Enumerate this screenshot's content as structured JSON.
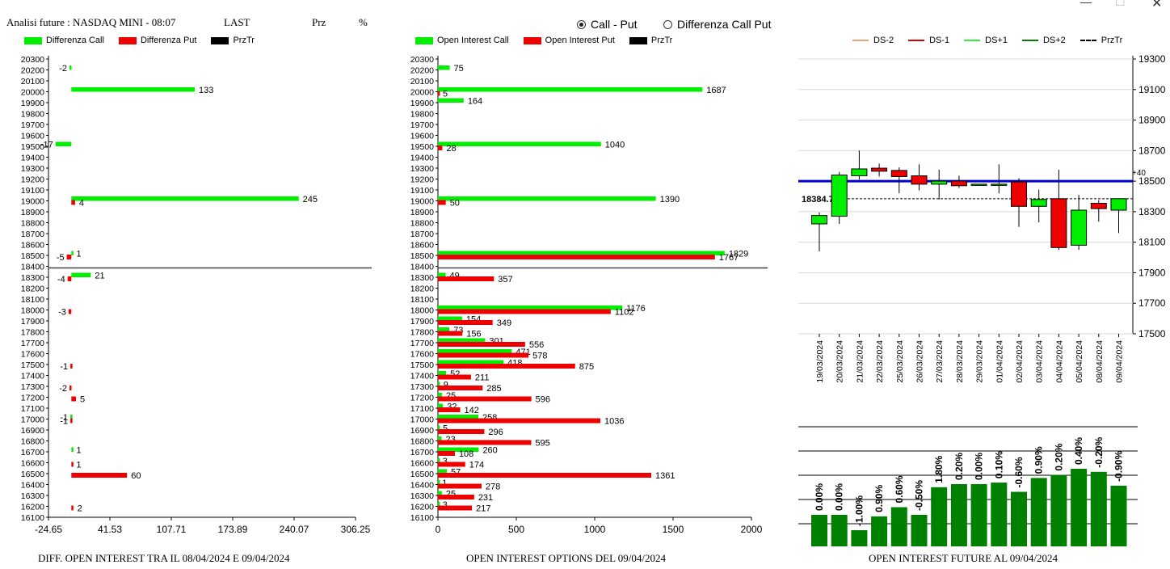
{
  "header": {
    "title": "Analisi future : NASDAQ MINI - 08:07",
    "last": "LAST",
    "prz": "Prz",
    "pct": "%"
  },
  "radio": {
    "call_put": "Call - Put",
    "diff": "Differenza Call Put",
    "selected": "call_put"
  },
  "colors": {
    "green": "#00ee00",
    "red": "#ee0000",
    "black": "#000000",
    "blue": "#0000cc",
    "dark_green": "#008000",
    "ds_minus2": "#f4a070",
    "ds_minus1": "#dd0000",
    "ds_plus1": "#33ee33",
    "ds_plus2": "#008000"
  },
  "legend_left": [
    {
      "label": "Differenza Call",
      "color": "#00ee00"
    },
    {
      "label": "Differenza Put",
      "color": "#ee0000"
    },
    {
      "label": "PrzTr",
      "color": "#000000"
    }
  ],
  "legend_mid": [
    {
      "label": "Open Interest Call",
      "color": "#00ee00"
    },
    {
      "label": "Open Interest Put",
      "color": "#ee0000"
    },
    {
      "label": "PrzTr",
      "color": "#000000"
    }
  ],
  "legend_right": [
    {
      "label": "DS-2",
      "color": "#f4a070",
      "style": "solid"
    },
    {
      "label": "DS-1",
      "color": "#dd0000",
      "style": "solid"
    },
    {
      "label": "DS+1",
      "color": "#33ee33",
      "style": "solid"
    },
    {
      "label": "DS+2",
      "color": "#008000",
      "style": "solid"
    },
    {
      "label": "PrzTr",
      "color": "#000000",
      "style": "dashed"
    }
  ],
  "captions": {
    "left": "DIFF. OPEN INTEREST TRA IL 08/04/2024 E 09/04/2024",
    "mid": "OPEN INTEREST OPTIONS DEL 09/04/2024",
    "right": "OPEN INTEREST FUTURE AL 09/04/2024"
  },
  "chart_data": [
    {
      "type": "bar",
      "orientation": "horizontal",
      "strikes": [
        20300,
        20200,
        20100,
        20000,
        19900,
        19800,
        19700,
        19600,
        19500,
        19400,
        19300,
        19200,
        19100,
        19000,
        18900,
        18800,
        18700,
        18600,
        18500,
        18400,
        18300,
        18200,
        18100,
        18000,
        17900,
        17800,
        17700,
        17600,
        17500,
        17400,
        17300,
        17200,
        17100,
        17000,
        16900,
        16800,
        16700,
        16600,
        16500,
        16400,
        16300,
        16200,
        16100
      ],
      "x_ticks": [
        "-24.65",
        "41.53",
        "107.71",
        "173.89",
        "240.07",
        "306.25"
      ],
      "xlim": [
        -24.65,
        306.25
      ],
      "price_line": 18384.75,
      "series": [
        {
          "name": "Differenza Call",
          "color": "#00ee00",
          "values": {
            "20200": -2,
            "20000": 133,
            "19500": -17,
            "19000": 245,
            "18500": 1,
            "18300": 21,
            "17000": -1,
            "16700": 1
          }
        },
        {
          "name": "Differenza Put",
          "color": "#ee0000",
          "values": {
            "19000": 4,
            "18500": -5,
            "18300": -4,
            "18000": -3,
            "17500": -1,
            "17300": -2,
            "17200": 5,
            "17000": -1,
            "16600": 1,
            "16500": 60,
            "16200": 2
          }
        }
      ]
    },
    {
      "type": "bar",
      "orientation": "horizontal",
      "strikes": [
        20300,
        20200,
        20100,
        20000,
        19900,
        19800,
        19700,
        19600,
        19500,
        19400,
        19300,
        19200,
        19100,
        19000,
        18900,
        18800,
        18700,
        18600,
        18500,
        18400,
        18300,
        18200,
        18100,
        18000,
        17900,
        17800,
        17700,
        17600,
        17500,
        17400,
        17300,
        17200,
        17100,
        17000,
        16900,
        16800,
        16700,
        16600,
        16500,
        16400,
        16300,
        16200,
        16100
      ],
      "x_ticks": [
        "0",
        "500",
        "1000",
        "1500",
        "2000"
      ],
      "xlim": [
        0,
        2000
      ],
      "price_line": 18384.75,
      "series": [
        {
          "name": "Open Interest Call",
          "color": "#00ee00",
          "values": {
            "20200": 75,
            "20000": 1687,
            "19900": 164,
            "19500": 1040,
            "19000": 1390,
            "18500": 1829,
            "18300": 49,
            "18000": 1176,
            "17900": 154,
            "17800": 73,
            "17700": 301,
            "17600": 471,
            "17500": 418,
            "17400": 52,
            "17300": 9,
            "17200": 25,
            "17100": 32,
            "17000": 258,
            "16900": 5,
            "16800": 23,
            "16700": 260,
            "16600": 3,
            "16500": 57,
            "16400": 1,
            "16300": 25,
            "16200": 3
          }
        },
        {
          "name": "Open Interest Put",
          "color": "#ee0000",
          "values": {
            "20000": 5,
            "19500": 28,
            "19000": 50,
            "18500": 1767,
            "18300": 357,
            "18000": 1102,
            "17900": 349,
            "17800": 156,
            "17700": 556,
            "17600": 578,
            "17500": 875,
            "17400": 211,
            "17300": 285,
            "17200": 596,
            "17100": 142,
            "17000": 1036,
            "16900": 296,
            "16800": 595,
            "16700": 108,
            "16600": 174,
            "16500": 1361,
            "16400": 278,
            "16300": 231,
            "16200": 217
          }
        }
      ]
    },
    {
      "type": "candlestick",
      "y_ticks": [
        "19300",
        "19100",
        "18900",
        "18700",
        "18500",
        "18300",
        "18100",
        "17900",
        "17700",
        "17500"
      ],
      "ylim": [
        17500,
        19300
      ],
      "dates": [
        "19/03/2024",
        "20/03/2024",
        "21/03/2024",
        "22/03/2024",
        "25/03/2024",
        "26/03/2024",
        "27/03/2024",
        "28/03/2024",
        "29/03/2024",
        "01/04/2024",
        "02/04/2024",
        "03/04/2024",
        "04/04/2024",
        "05/04/2024",
        "08/04/2024",
        "09/04/2024"
      ],
      "candles": [
        {
          "o": 18220,
          "c": 18275,
          "h": 18295,
          "l": 18040
        },
        {
          "o": 18270,
          "c": 18540,
          "h": 18560,
          "l": 18220
        },
        {
          "o": 18535,
          "c": 18580,
          "h": 18700,
          "l": 18510
        },
        {
          "o": 18585,
          "c": 18565,
          "h": 18615,
          "l": 18530
        },
        {
          "o": 18570,
          "c": 18530,
          "h": 18590,
          "l": 18420
        },
        {
          "o": 18535,
          "c": 18480,
          "h": 18610,
          "l": 18440
        },
        {
          "o": 18480,
          "c": 18500,
          "h": 18575,
          "l": 18380
        },
        {
          "o": 18500,
          "c": 18470,
          "h": 18535,
          "l": 18455
        },
        {
          "o": 18475,
          "c": 18480,
          "h": 18480,
          "l": 18475
        },
        {
          "o": 18480,
          "c": 18480,
          "h": 18610,
          "l": 18420
        },
        {
          "o": 18495,
          "c": 18335,
          "h": 18520,
          "l": 18200
        },
        {
          "o": 18335,
          "c": 18380,
          "h": 18445,
          "l": 18230
        },
        {
          "o": 18385,
          "c": 18065,
          "h": 18575,
          "l": 18050
        },
        {
          "o": 18080,
          "c": 18310,
          "h": 18410,
          "l": 18050
        },
        {
          "o": 18355,
          "c": 18320,
          "h": 18375,
          "l": 18235
        },
        {
          "o": 18310,
          "c": 18385,
          "h": 18385,
          "l": 18160
        }
      ],
      "ref_level": 18500,
      "ref_label": "+40",
      "price": 18384.75,
      "price_label": "18384.75"
    },
    {
      "type": "bar",
      "labels": [
        "0.00%",
        "0.00%",
        "-1.00%",
        "0.90%",
        "0.60%",
        "-0.50%",
        "1.80%",
        "0.20%",
        "0.00%",
        "0.10%",
        "-0.60%",
        "0.90%",
        "0.20%",
        "0.40%",
        "-0.20%",
        "-0.90%"
      ],
      "values": [
        0.0,
        0.0,
        -1.0,
        0.9,
        0.6,
        -0.5,
        1.8,
        0.2,
        0.0,
        0.1,
        -0.6,
        0.9,
        0.2,
        0.4,
        -0.2,
        -0.9
      ],
      "color": "#008000"
    }
  ]
}
